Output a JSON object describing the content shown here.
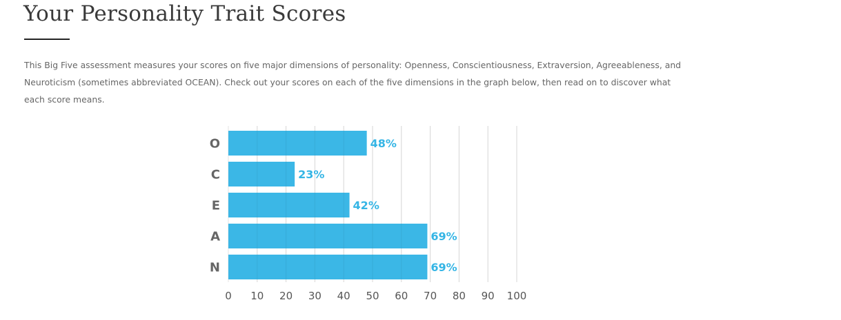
{
  "page": {
    "title": "Your Personality Trait Scores",
    "intro": "This Big Five assessment measures your scores on five major dimensions of personality: Openness, Conscientiousness, Extraversion, Agreeableness, and Neuroticism (sometimes abbreviated OCEAN). Check out your scores on each of the five dimensions in the graph below, then read on to discover what each score means."
  },
  "chart_data": {
    "type": "bar",
    "orientation": "horizontal",
    "title": "",
    "xlabel": "",
    "ylabel": "",
    "categories": [
      "O",
      "C",
      "E",
      "A",
      "N"
    ],
    "values": [
      48,
      23,
      42,
      69,
      69
    ],
    "value_labels": [
      "48%",
      "23%",
      "42%",
      "69%",
      "69%"
    ],
    "xlim": [
      0,
      100
    ],
    "x_ticks": [
      "0",
      "10",
      "20",
      "30",
      "40",
      "50",
      "60",
      "70",
      "80",
      "90",
      "100"
    ],
    "grid": true,
    "legend": "none",
    "colors": {
      "bar": "#35b5e5",
      "value_label": "#35b5e5",
      "grid": "#e3e3e3"
    }
  }
}
